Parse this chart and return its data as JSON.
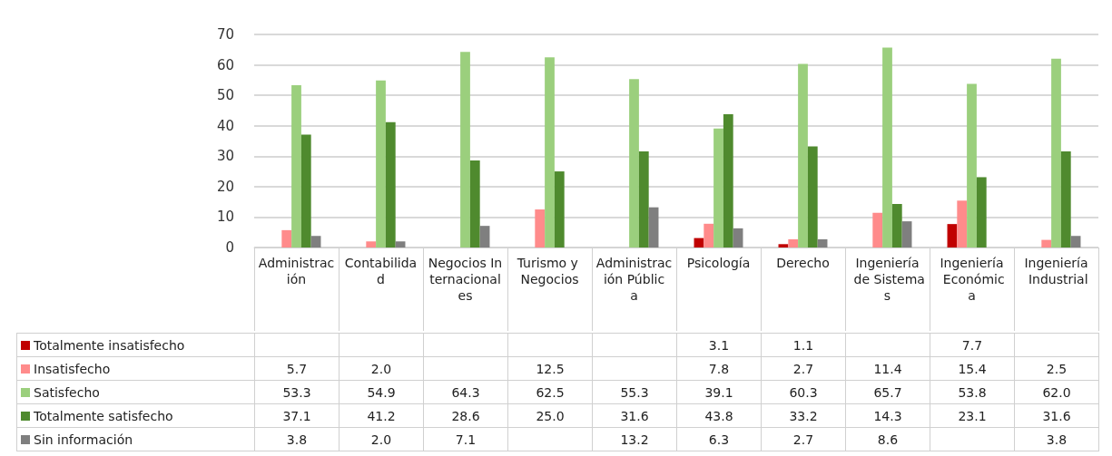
{
  "chart_data": {
    "type": "bar",
    "categories": [
      "Administración",
      "Contabilidad",
      "Negocios Internacionales",
      "Turismo y Negocios",
      "Administración Pública",
      "Psicología",
      "Derecho",
      "Ingeniería de Sistemas",
      "Ingeniería Económica",
      "Ingeniería Industrial"
    ],
    "series": [
      {
        "name": "Totalmente insatisfecho",
        "color": "#c00000",
        "values": [
          null,
          null,
          null,
          null,
          null,
          3.1,
          1.1,
          null,
          7.7,
          null
        ],
        "value_labels": [
          null,
          null,
          null,
          null,
          null,
          "3.1",
          "1.1",
          null,
          "7.7",
          null
        ]
      },
      {
        "name": "Insatisfecho",
        "color": "#ff8b8b",
        "values": [
          5.7,
          2.0,
          null,
          12.5,
          null,
          7.8,
          2.7,
          11.4,
          15.4,
          2.5
        ],
        "value_labels": [
          "5.7",
          "2.0",
          null,
          "12.5",
          null,
          "7.8",
          "2.7",
          "11.4",
          "15.4",
          "2.5"
        ]
      },
      {
        "name": "Satisfecho",
        "color": "#9bcf7d",
        "values": [
          53.3,
          54.9,
          64.3,
          62.5,
          55.3,
          39.1,
          60.3,
          65.7,
          53.8,
          62.0
        ],
        "value_labels": [
          "53.3",
          "54.9",
          "64.3",
          "62.5",
          "55.3",
          "39.1",
          "60.3",
          "65.7",
          "53.8",
          "62.0"
        ]
      },
      {
        "name": "Totalmente satisfecho",
        "color": "#4f8a2e",
        "values": [
          37.1,
          41.2,
          28.6,
          25.0,
          31.6,
          43.8,
          33.2,
          14.3,
          23.1,
          31.6
        ],
        "value_labels": [
          "37.1",
          "41.2",
          "28.6",
          "25.0",
          "31.6",
          "43.8",
          "33.2",
          "14.3",
          "23.1",
          "31.6"
        ]
      },
      {
        "name": "Sin información",
        "color": "#7f7f7f",
        "values": [
          3.8,
          2.0,
          7.1,
          null,
          13.2,
          6.3,
          2.7,
          8.6,
          null,
          3.8
        ],
        "value_labels": [
          "3.8",
          "2.0",
          "7.1",
          null,
          "13.2",
          "6.3",
          "2.7",
          "8.6",
          null,
          "3.8"
        ]
      }
    ],
    "ylim": [
      0,
      70
    ],
    "yticks": [
      0,
      10,
      20,
      30,
      40,
      50,
      60,
      70
    ],
    "grid": "y",
    "legend": "bottom left"
  }
}
